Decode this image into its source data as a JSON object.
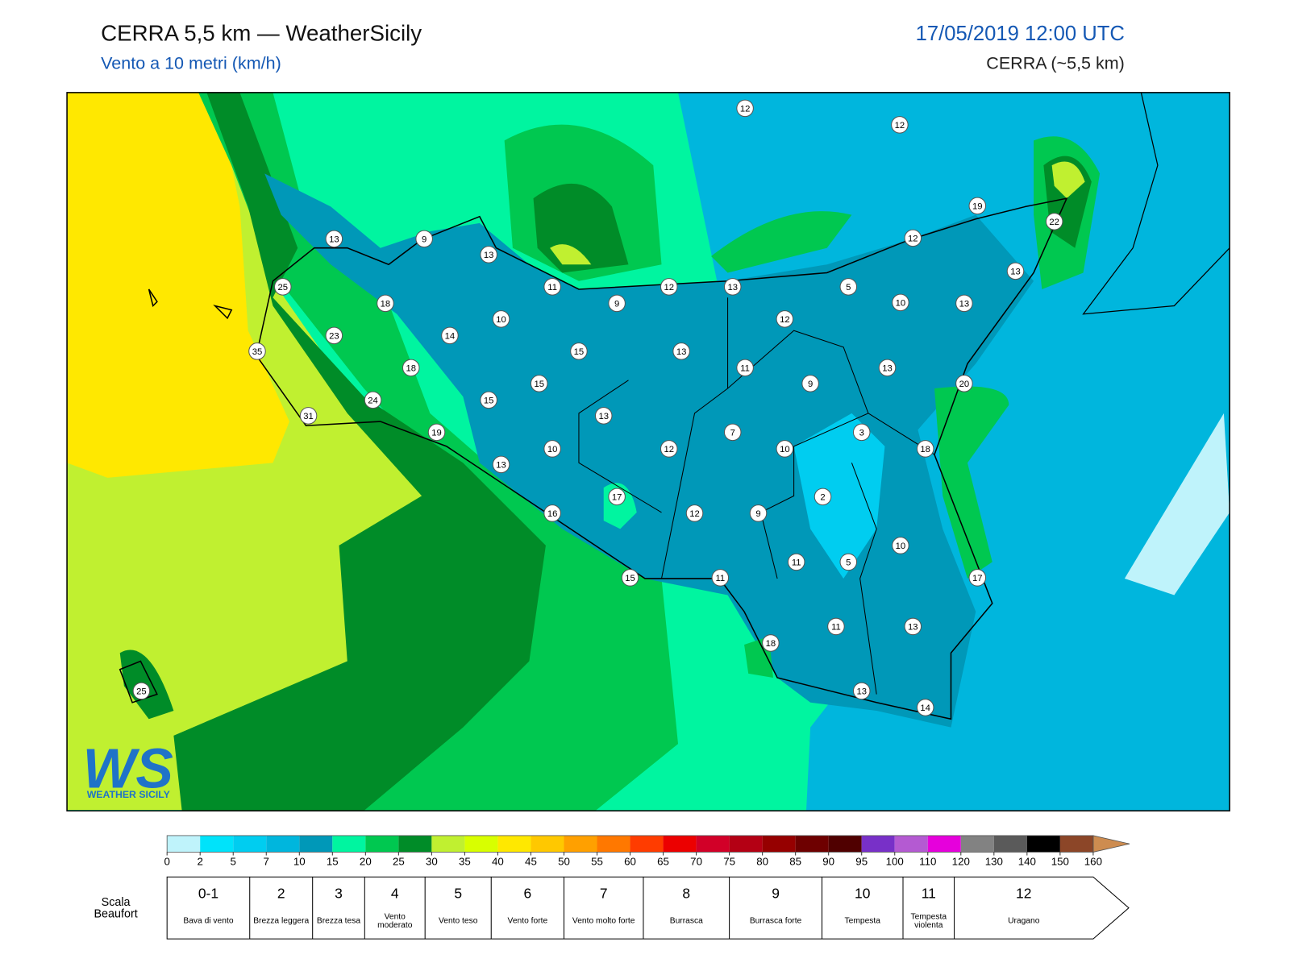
{
  "header": {
    "title": "CERRA 5,5 km — WeatherSicily",
    "subtitle": "Vento a 10 metri (km/h)",
    "datetime": "17/05/2019 12:00 UTC",
    "model": "CERRA (~5,5 km)"
  },
  "map": {
    "stations": [
      12,
      12,
      19,
      22,
      13,
      9,
      13,
      12,
      13,
      25,
      11,
      12,
      13,
      5,
      18,
      9,
      10,
      13,
      10,
      12,
      23,
      14,
      35,
      15,
      13,
      18,
      11,
      13,
      15,
      9,
      20,
      24,
      15,
      13,
      31,
      19,
      7,
      3,
      10,
      12,
      10,
      18,
      13,
      17,
      2,
      16,
      12,
      9,
      10,
      11,
      5,
      17,
      15,
      11,
      11,
      13,
      18,
      25,
      13,
      14
    ]
  },
  "logo": {
    "mark": "WS",
    "name": "WEATHER SICILY"
  },
  "colorbar": {
    "levels": [
      0,
      2,
      5,
      7,
      10,
      15,
      20,
      25,
      30,
      35,
      40,
      45,
      50,
      55,
      60,
      65,
      70,
      75,
      80,
      85,
      90,
      95,
      100,
      110,
      120,
      130,
      140,
      150,
      160
    ],
    "colors": [
      "#bff3fb",
      "#00e3fa",
      "#00cdf0",
      "#00b6dd",
      "#0098b8",
      "#00f5a0",
      "#00c850",
      "#008c28",
      "#c0f030",
      "#d8ff00",
      "#ffe800",
      "#ffc800",
      "#ffa000",
      "#ff7800",
      "#ff3c00",
      "#ec0000",
      "#d20028",
      "#b40014",
      "#960000",
      "#6e0000",
      "#500000",
      "#7830c8",
      "#b45ad2",
      "#e600dc",
      "#828282",
      "#5a5a5a",
      "#000000",
      "#8c4628"
    ],
    "over_color": "#cd8c50"
  },
  "beaufort": {
    "label": "Scala Beaufort",
    "scale": [
      {
        "force": "0-1",
        "name": "Bava di vento"
      },
      {
        "force": 2,
        "name": "Brezza leggera"
      },
      {
        "force": 3,
        "name": "Brezza tesa"
      },
      {
        "force": 4,
        "name": "Vento moderato"
      },
      {
        "force": 5,
        "name": "Vento teso"
      },
      {
        "force": 6,
        "name": "Vento forte"
      },
      {
        "force": 7,
        "name": "Vento molto forte"
      },
      {
        "force": 8,
        "name": "Burrasca"
      },
      {
        "force": 9,
        "name": "Burrasca forte"
      },
      {
        "force": 10,
        "name": "Tempesta"
      },
      {
        "force": 11,
        "name": "Tempesta violenta"
      },
      {
        "force": 12,
        "name": "Uragano"
      }
    ]
  }
}
